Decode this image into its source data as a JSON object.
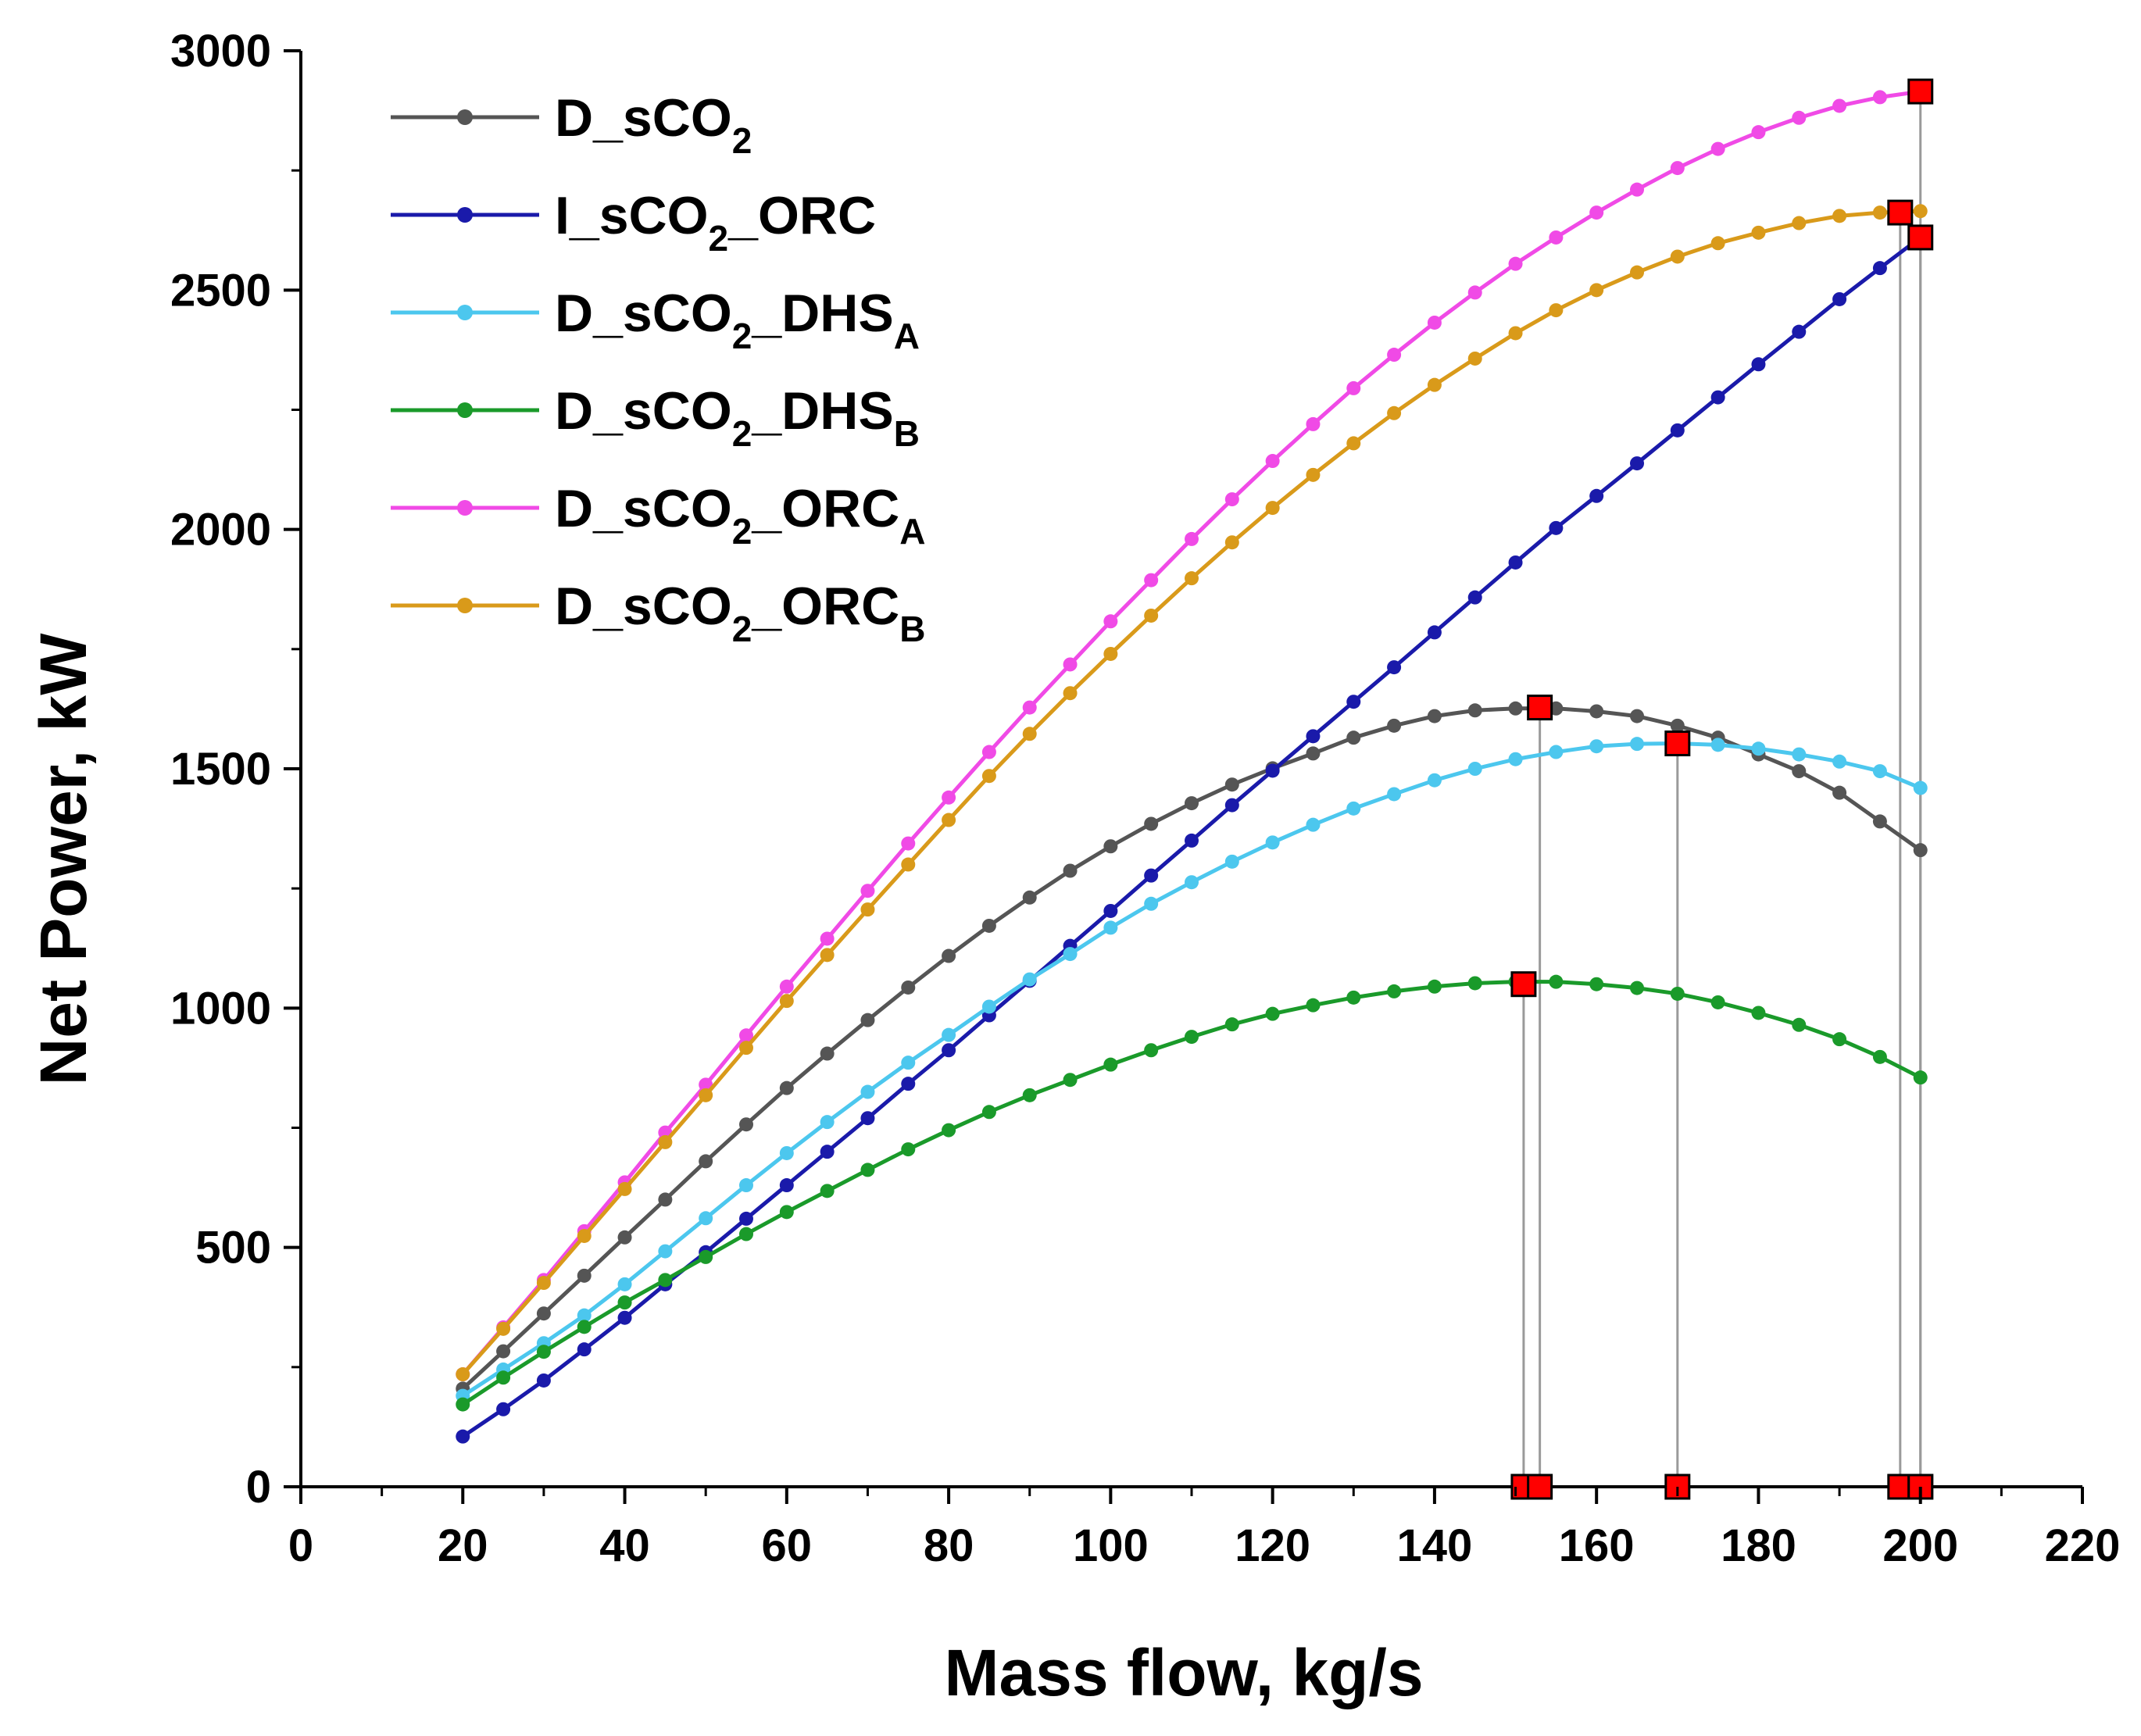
{
  "chart_data": {
    "type": "line",
    "title": "",
    "xlabel": "Mass flow, kg/s",
    "ylabel": "Net Power, kW",
    "xlim": [
      0,
      220
    ],
    "ylim": [
      0,
      3000
    ],
    "xticks": [
      0,
      20,
      40,
      60,
      80,
      100,
      120,
      140,
      160,
      180,
      200,
      220
    ],
    "yticks": [
      0,
      500,
      1000,
      1500,
      2000,
      2500,
      3000
    ],
    "x_tick_labels": [
      "0",
      "20",
      "40",
      "60",
      "80",
      "100",
      "120",
      "140",
      "160",
      "180",
      "200",
      "220"
    ],
    "y_tick_labels": [
      "0",
      "500",
      "1000",
      "1500",
      "2000",
      "2500",
      "3000"
    ],
    "grid": false,
    "legend_position": "top-left",
    "x": [
      20,
      25,
      30,
      35,
      40,
      45,
      50,
      55,
      60,
      65,
      70,
      75,
      80,
      85,
      90,
      95,
      100,
      105,
      110,
      115,
      120,
      125,
      130,
      135,
      140,
      145,
      150,
      155,
      160,
      165,
      170,
      175,
      180,
      185,
      190,
      195,
      200
    ],
    "series": [
      {
        "name": "D_sCO2",
        "label_main": "D_sCO",
        "label_sub": "2",
        "label_tail": "",
        "label_tail_sub": "",
        "color": "#555555",
        "values": [
          205,
          283,
          362,
          441,
          521,
          600,
          680,
          757,
          833,
          905,
          975,
          1043,
          1109,
          1172,
          1231,
          1287,
          1338,
          1385,
          1428,
          1467,
          1501,
          1532,
          1565,
          1590,
          1610,
          1622,
          1626,
          1626,
          1620,
          1610,
          1590,
          1565,
          1530,
          1495,
          1450,
          1390,
          1330
        ]
      },
      {
        "name": "I_sCO2_ORC",
        "label_main": "I_sCO",
        "label_sub": "2",
        "label_tail": "_ORC",
        "label_tail_sub": "",
        "color": "#1a1aaa",
        "values": [
          105,
          162,
          222,
          287,
          353,
          423,
          490,
          560,
          630,
          700,
          770,
          842,
          912,
          985,
          1057,
          1130,
          1203,
          1277,
          1350,
          1424,
          1496,
          1568,
          1640,
          1712,
          1785,
          1858,
          1931,
          2003,
          2070,
          2138,
          2207,
          2276,
          2345,
          2413,
          2481,
          2546,
          2610
        ]
      },
      {
        "name": "D_sCO2_DHSA",
        "label_main": "D_sCO",
        "label_sub": "2",
        "label_tail": "_DHS",
        "label_tail_sub": "A",
        "color": "#4cc7ee",
        "values": [
          190,
          245,
          300,
          358,
          423,
          492,
          561,
          630,
          697,
          762,
          825,
          886,
          944,
          1003,
          1060,
          1113,
          1168,
          1218,
          1263,
          1306,
          1346,
          1383,
          1417,
          1447,
          1476,
          1500,
          1520,
          1535,
          1547,
          1552,
          1553,
          1550,
          1542,
          1530,
          1515,
          1495,
          1460
        ]
      },
      {
        "name": "D_sCO2_DHSB",
        "label_main": "D_sCO",
        "label_sub": "2",
        "label_tail": "_DHS",
        "label_tail_sub": "B",
        "color": "#1a9a2a",
        "values": [
          172,
          228,
          282,
          334,
          385,
          432,
          480,
          528,
          574,
          618,
          662,
          705,
          745,
          783,
          818,
          850,
          882,
          912,
          940,
          966,
          988,
          1006,
          1022,
          1035,
          1045,
          1052,
          1055,
          1055,
          1050,
          1042,
          1030,
          1012,
          990,
          965,
          935,
          898,
          855
        ]
      },
      {
        "name": "D_sCO2_ORCA",
        "label_main": "D_sCO",
        "label_sub": "2",
        "label_tail": "_ORC",
        "label_tail_sub": "A",
        "color": "#f04ae6",
        "values": [
          235,
          333,
          432,
          534,
          636,
          740,
          840,
          943,
          1045,
          1145,
          1245,
          1344,
          1440,
          1535,
          1628,
          1718,
          1808,
          1894,
          1980,
          2063,
          2143,
          2220,
          2295,
          2365,
          2432,
          2495,
          2555,
          2610,
          2662,
          2710,
          2755,
          2795,
          2830,
          2860,
          2885,
          2903,
          2915
        ]
      },
      {
        "name": "D_sCO2_ORCB",
        "label_main": "D_sCO",
        "label_sub": "2",
        "label_tail": "_ORC",
        "label_tail_sub": "B",
        "color": "#d99a1a",
        "values": [
          235,
          330,
          426,
          524,
          622,
          720,
          818,
          917,
          1015,
          1111,
          1206,
          1300,
          1393,
          1485,
          1573,
          1658,
          1740,
          1820,
          1898,
          1973,
          2045,
          2114,
          2180,
          2243,
          2302,
          2357,
          2410,
          2458,
          2500,
          2537,
          2570,
          2598,
          2620,
          2640,
          2655,
          2662,
          2665
        ]
      }
    ],
    "optimum_markers": [
      {
        "x": 151,
        "y": 1050
      },
      {
        "x": 153,
        "y": 1628
      },
      {
        "x": 170,
        "y": 1553
      },
      {
        "x": 197.5,
        "y": 2662
      },
      {
        "x": 200,
        "y": 2610
      },
      {
        "x": 200,
        "y": 2915
      }
    ],
    "marker_color": "#ff0000"
  }
}
